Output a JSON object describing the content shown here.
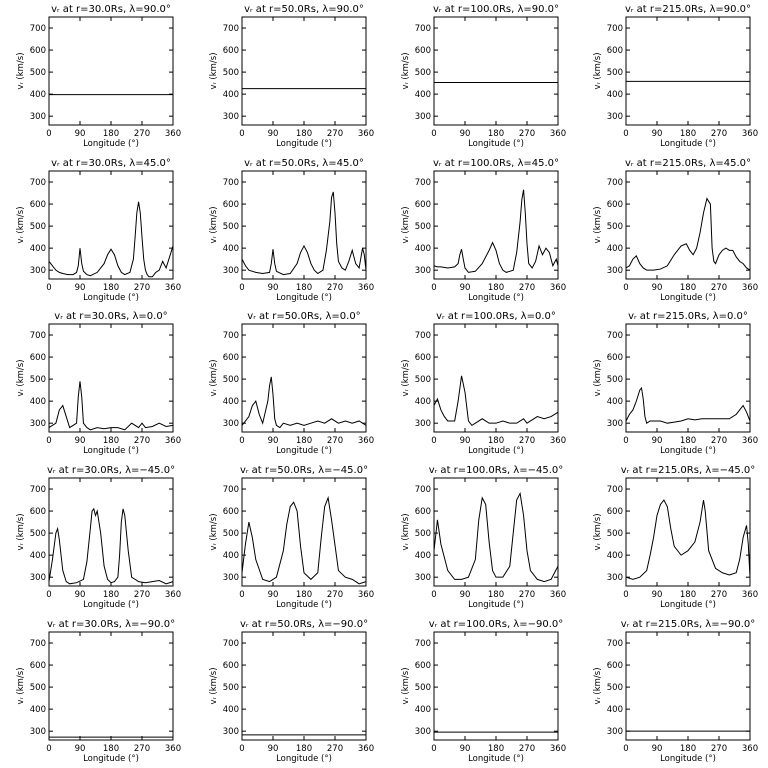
{
  "common": {
    "xlabel": "Longitude (°)",
    "ylabel": "vᵣ (km/s)",
    "xticks": [
      "0",
      "90",
      "180",
      "270",
      "360"
    ],
    "yticks": [
      "300",
      "400",
      "500",
      "600",
      "700"
    ],
    "xlim": [
      0,
      360
    ],
    "ylim": [
      260,
      750
    ]
  },
  "chart_data": [
    {
      "type": "line",
      "title": "vᵣ at r=30.0Rs, λ=90.0°",
      "x": [
        0,
        360
      ],
      "y": [
        398,
        398
      ]
    },
    {
      "type": "line",
      "title": "vᵣ at r=50.0Rs, λ=90.0°",
      "x": [
        0,
        360
      ],
      "y": [
        425,
        425
      ]
    },
    {
      "type": "line",
      "title": "vᵣ at r=100.0Rs, λ=90.0°",
      "x": [
        0,
        360
      ],
      "y": [
        453,
        453
      ]
    },
    {
      "type": "line",
      "title": "vᵣ at r=215.0Rs, λ=90.0°",
      "x": [
        0,
        360
      ],
      "y": [
        458,
        458
      ]
    },
    {
      "type": "line",
      "title": "vᵣ at r=30.0Rs, λ=45.0°",
      "x": [
        0,
        10,
        20,
        30,
        40,
        55,
        70,
        80,
        85,
        90,
        95,
        100,
        110,
        120,
        140,
        160,
        170,
        180,
        190,
        200,
        210,
        220,
        235,
        245,
        250,
        255,
        260,
        265,
        270,
        275,
        280,
        285,
        290,
        300,
        310,
        320,
        330,
        340,
        350,
        360
      ],
      "y": [
        340,
        320,
        300,
        290,
        285,
        280,
        280,
        290,
        320,
        400,
        330,
        295,
        280,
        275,
        290,
        330,
        370,
        395,
        370,
        320,
        290,
        280,
        290,
        350,
        450,
        560,
        610,
        560,
        450,
        350,
        300,
        280,
        270,
        270,
        290,
        300,
        340,
        310,
        360,
        410
      ]
    },
    {
      "type": "line",
      "title": "vᵣ at r=50.0Rs, λ=45.0°",
      "x": [
        0,
        10,
        20,
        40,
        60,
        80,
        85,
        90,
        95,
        100,
        120,
        140,
        160,
        170,
        180,
        190,
        200,
        210,
        220,
        235,
        245,
        255,
        260,
        265,
        270,
        275,
        280,
        290,
        300,
        310,
        320,
        330,
        340,
        350,
        355,
        360
      ],
      "y": [
        350,
        320,
        300,
        290,
        285,
        290,
        330,
        395,
        330,
        295,
        280,
        285,
        330,
        380,
        410,
        380,
        330,
        300,
        285,
        300,
        390,
        520,
        630,
        655,
        560,
        420,
        340,
        310,
        300,
        340,
        390,
        330,
        310,
        400,
        370,
        300
      ]
    },
    {
      "type": "line",
      "title": "vᵣ at r=100.0Rs, λ=45.0°",
      "x": [
        0,
        10,
        20,
        40,
        60,
        70,
        75,
        80,
        85,
        90,
        100,
        120,
        140,
        160,
        170,
        180,
        190,
        200,
        210,
        230,
        240,
        250,
        255,
        260,
        265,
        270,
        275,
        285,
        295,
        305,
        315,
        325,
        335,
        345,
        355,
        360
      ],
      "y": [
        320,
        315,
        315,
        310,
        315,
        330,
        370,
        395,
        350,
        310,
        290,
        295,
        330,
        390,
        425,
        390,
        330,
        300,
        290,
        300,
        380,
        520,
        620,
        665,
        560,
        420,
        330,
        310,
        340,
        410,
        370,
        400,
        380,
        320,
        350,
        320
      ]
    },
    {
      "type": "line",
      "title": "vᵣ at r=215.0Rs, λ=45.0°",
      "x": [
        0,
        10,
        20,
        30,
        40,
        50,
        60,
        80,
        100,
        120,
        140,
        160,
        175,
        185,
        195,
        205,
        215,
        225,
        235,
        245,
        250,
        255,
        260,
        270,
        280,
        290,
        300,
        310,
        320,
        330,
        340,
        350,
        360
      ],
      "y": [
        310,
        320,
        350,
        365,
        330,
        310,
        300,
        300,
        305,
        320,
        370,
        410,
        420,
        390,
        370,
        400,
        470,
        560,
        625,
        600,
        400,
        340,
        330,
        370,
        390,
        400,
        390,
        390,
        360,
        340,
        330,
        310,
        300
      ]
    },
    {
      "type": "line",
      "title": "vᵣ at r=30.0Rs, λ=0.0°",
      "x": [
        0,
        20,
        30,
        40,
        50,
        60,
        80,
        85,
        90,
        95,
        100,
        110,
        120,
        140,
        160,
        180,
        200,
        220,
        240,
        260,
        270,
        280,
        300,
        320,
        340,
        360
      ],
      "y": [
        280,
        300,
        360,
        380,
        330,
        280,
        300,
        420,
        490,
        420,
        300,
        280,
        270,
        280,
        275,
        280,
        280,
        270,
        300,
        280,
        300,
        280,
        285,
        300,
        285,
        290
      ]
    },
    {
      "type": "line",
      "title": "vᵣ at r=50.0Rs, λ=0.0°",
      "x": [
        0,
        20,
        30,
        40,
        50,
        60,
        75,
        80,
        85,
        90,
        95,
        100,
        110,
        120,
        140,
        160,
        180,
        200,
        220,
        240,
        260,
        280,
        300,
        320,
        340,
        360
      ],
      "y": [
        290,
        330,
        380,
        400,
        340,
        300,
        400,
        470,
        510,
        430,
        320,
        290,
        280,
        300,
        290,
        300,
        290,
        300,
        310,
        300,
        320,
        300,
        310,
        300,
        310,
        290
      ]
    },
    {
      "type": "line",
      "title": "vᵣ at r=100.0Rs, λ=0.0°",
      "x": [
        0,
        10,
        20,
        30,
        40,
        60,
        70,
        80,
        90,
        100,
        110,
        120,
        140,
        160,
        180,
        200,
        220,
        240,
        260,
        270,
        280,
        300,
        320,
        340,
        360
      ],
      "y": [
        380,
        410,
        360,
        330,
        310,
        310,
        400,
        515,
        440,
        310,
        290,
        300,
        320,
        300,
        300,
        310,
        300,
        300,
        320,
        300,
        310,
        330,
        320,
        330,
        350
      ]
    },
    {
      "type": "line",
      "title": "vᵣ at r=215.0Rs, λ=0.0°",
      "x": [
        0,
        10,
        20,
        30,
        40,
        45,
        50,
        55,
        60,
        70,
        80,
        100,
        120,
        140,
        160,
        180,
        200,
        220,
        240,
        260,
        280,
        300,
        320,
        330,
        340,
        350,
        360
      ],
      "y": [
        310,
        340,
        360,
        400,
        450,
        460,
        410,
        330,
        300,
        310,
        310,
        310,
        300,
        305,
        310,
        320,
        315,
        320,
        320,
        320,
        320,
        320,
        340,
        360,
        380,
        350,
        310
      ]
    },
    {
      "type": "line",
      "title": "vᵣ at r=30.0Rs, λ=−45.0°",
      "x": [
        0,
        10,
        20,
        25,
        30,
        40,
        50,
        60,
        80,
        100,
        110,
        120,
        125,
        130,
        135,
        140,
        150,
        160,
        170,
        180,
        190,
        200,
        205,
        210,
        215,
        220,
        230,
        240,
        250,
        260,
        280,
        300,
        320,
        340,
        360
      ],
      "y": [
        280,
        380,
        500,
        520,
        470,
        330,
        280,
        270,
        275,
        290,
        370,
        520,
        600,
        610,
        580,
        600,
        500,
        350,
        290,
        275,
        280,
        300,
        400,
        550,
        610,
        580,
        420,
        300,
        290,
        280,
        275,
        280,
        285,
        270,
        280
      ]
    },
    {
      "type": "line",
      "title": "vᵣ at r=50.0Rs, λ=−45.0°",
      "x": [
        0,
        10,
        20,
        30,
        40,
        60,
        80,
        100,
        120,
        130,
        140,
        150,
        160,
        170,
        180,
        200,
        220,
        230,
        240,
        250,
        260,
        280,
        300,
        320,
        340,
        360
      ],
      "y": [
        320,
        450,
        550,
        480,
        380,
        290,
        280,
        300,
        420,
        540,
        620,
        640,
        600,
        440,
        320,
        290,
        320,
        480,
        620,
        660,
        560,
        330,
        300,
        290,
        270,
        280
      ]
    },
    {
      "type": "line",
      "title": "vᵣ at r=100.0Rs, λ=−45.0°",
      "x": [
        0,
        10,
        20,
        40,
        60,
        80,
        100,
        120,
        130,
        140,
        150,
        160,
        170,
        180,
        200,
        220,
        230,
        240,
        250,
        260,
        270,
        280,
        300,
        320,
        340,
        360
      ],
      "y": [
        420,
        560,
        450,
        330,
        290,
        290,
        300,
        380,
        560,
        660,
        630,
        460,
        330,
        300,
        300,
        350,
        500,
        650,
        680,
        580,
        420,
        330,
        290,
        280,
        290,
        350
      ]
    },
    {
      "type": "line",
      "title": "vᵣ at r=215.0Rs, λ=−45.0°",
      "x": [
        0,
        20,
        40,
        60,
        70,
        80,
        90,
        100,
        110,
        120,
        130,
        140,
        160,
        180,
        200,
        215,
        225,
        230,
        240,
        260,
        280,
        300,
        320,
        330,
        340,
        350,
        355,
        360
      ],
      "y": [
        300,
        290,
        300,
        330,
        400,
        480,
        580,
        630,
        650,
        620,
        520,
        440,
        400,
        420,
        460,
        550,
        650,
        600,
        420,
        340,
        320,
        310,
        320,
        380,
        480,
        535,
        450,
        300
      ]
    },
    {
      "type": "line",
      "title": "vᵣ at r=30.0Rs, λ=−90.0°",
      "x": [
        0,
        360
      ],
      "y": [
        273,
        273
      ]
    },
    {
      "type": "line",
      "title": "vᵣ at r=50.0Rs, λ=−90.0°",
      "x": [
        0,
        360
      ],
      "y": [
        283,
        283
      ]
    },
    {
      "type": "line",
      "title": "vᵣ at r=100.0Rs, λ=−90.0°",
      "x": [
        0,
        360
      ],
      "y": [
        296,
        296
      ]
    },
    {
      "type": "line",
      "title": "vᵣ at r=215.0Rs, λ=−90.0°",
      "x": [
        0,
        360
      ],
      "y": [
        300,
        300
      ]
    }
  ]
}
